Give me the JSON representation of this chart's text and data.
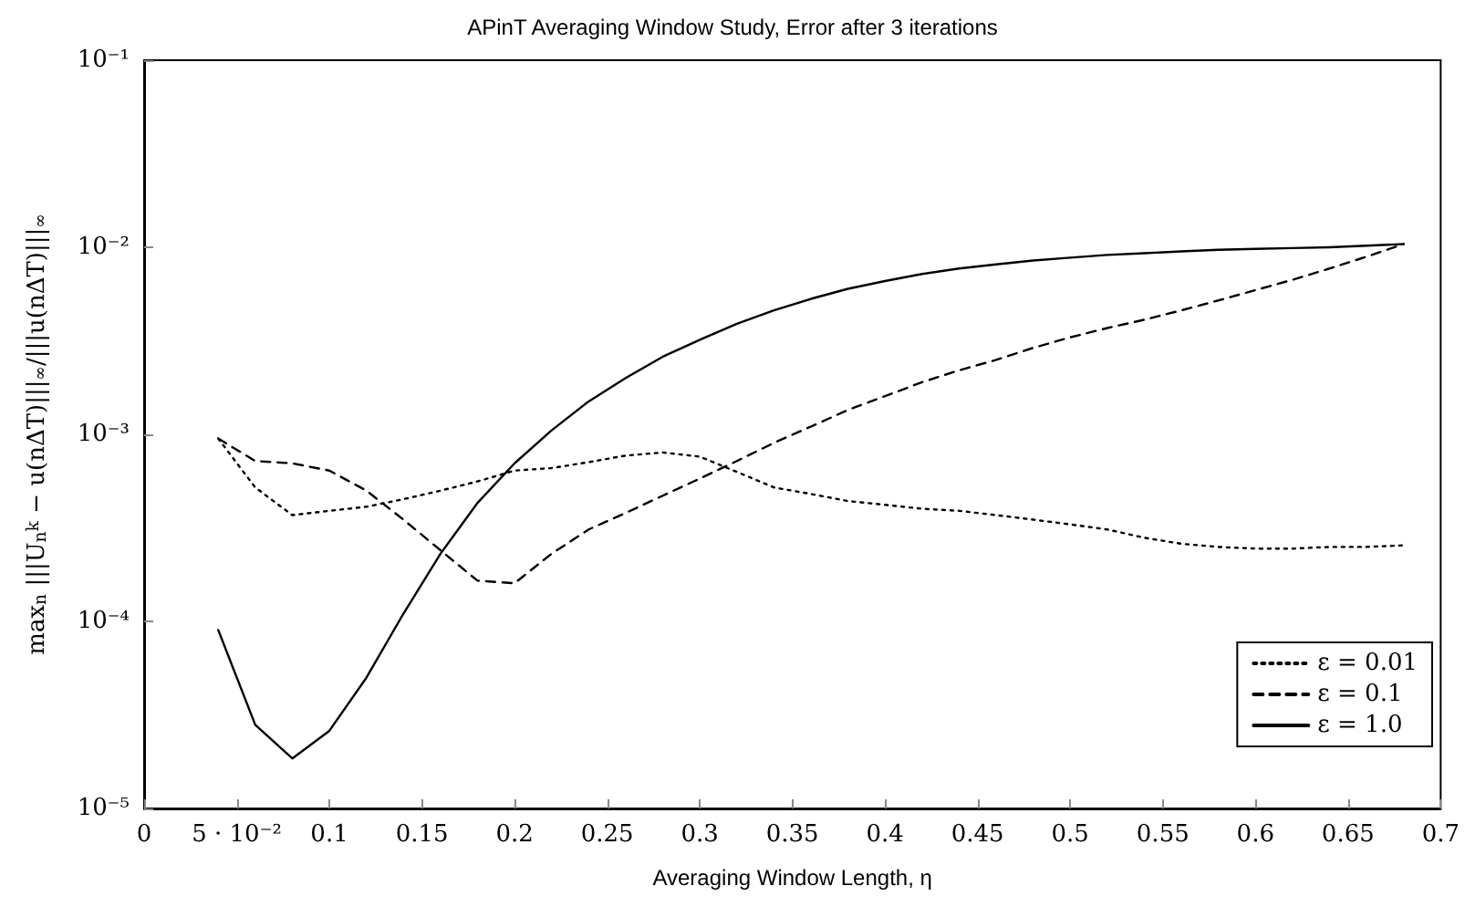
{
  "chart_data": {
    "type": "line",
    "title": "APinT Averaging Window Study, Error after 3 iterations",
    "xlabel": "Averaging Window Length, η",
    "ylabel": "max$_{n}$ |||U$_{n}$$^{k}$ − u(nΔT)|||$_{∞}$/|||u(nΔT)|||$_{∞}$",
    "x": [
      0.04,
      0.06,
      0.08,
      0.1,
      0.12,
      0.14,
      0.16,
      0.18,
      0.2,
      0.22,
      0.24,
      0.26,
      0.28,
      0.3,
      0.32,
      0.34,
      0.36,
      0.38,
      0.4,
      0.42,
      0.44,
      0.46,
      0.48,
      0.5,
      0.52,
      0.54,
      0.56,
      0.58,
      0.6,
      0.62,
      0.64,
      0.66,
      0.68
    ],
    "series": [
      {
        "name": "ε = 0.01",
        "color": "#000000",
        "line_style": "dotted",
        "values": [
          0.00095,
          0.00052,
          0.00037,
          0.00039,
          0.00041,
          0.00045,
          0.0005,
          0.00056,
          0.00064,
          0.00066,
          0.00071,
          0.00077,
          0.0008,
          0.00076,
          0.00063,
          0.00052,
          0.00048,
          0.00044,
          0.00042,
          0.0004,
          0.00039,
          0.00037,
          0.00035,
          0.00033,
          0.00031,
          0.00028,
          0.00026,
          0.00025,
          0.000245,
          0.000245,
          0.00025,
          0.00025,
          0.000255
        ]
      },
      {
        "name": "ε = 0.1",
        "color": "#000000",
        "line_style": "dashed",
        "values": [
          0.00095,
          0.00072,
          0.0007,
          0.00064,
          0.0005,
          0.00035,
          0.00024,
          0.000165,
          0.00016,
          0.00023,
          0.00031,
          0.00038,
          0.00047,
          0.00058,
          0.00072,
          0.0009,
          0.0011,
          0.00135,
          0.0016,
          0.0019,
          0.0022,
          0.0025,
          0.0029,
          0.0033,
          0.0037,
          0.0041,
          0.0046,
          0.0052,
          0.0059,
          0.0067,
          0.0077,
          0.0089,
          0.0104
        ]
      },
      {
        "name": "ε = 1.0",
        "color": "#000000",
        "line_style": "solid",
        "values": [
          9e-05,
          2.8e-05,
          1.85e-05,
          2.6e-05,
          5e-05,
          0.00011,
          0.00023,
          0.00043,
          0.0007,
          0.00105,
          0.0015,
          0.002,
          0.0026,
          0.0032,
          0.0039,
          0.0046,
          0.0053,
          0.006,
          0.0066,
          0.0072,
          0.0077,
          0.0081,
          0.0085,
          0.0088,
          0.0091,
          0.0093,
          0.0095,
          0.0097,
          0.0098,
          0.0099,
          0.01,
          0.0102,
          0.0104
        ]
      }
    ],
    "xlim": [
      0,
      0.7
    ],
    "xticks": [
      0,
      {
        "value": 0.05,
        "label": "5 · 10⁻²"
      },
      0.1,
      0.15,
      0.2,
      0.25,
      0.3,
      0.35,
      0.4,
      0.45,
      0.5,
      0.55,
      0.6,
      0.65,
      0.7
    ],
    "ylim": [
      1e-05,
      0.1
    ],
    "yticks": [
      {
        "value": 1e-05,
        "label": "10⁻⁵"
      },
      {
        "value": 0.0001,
        "label": "10⁻⁴"
      },
      {
        "value": 0.001,
        "label": "10⁻³"
      },
      {
        "value": 0.01,
        "label": "10⁻²"
      },
      {
        "value": 0.1,
        "label": "10⁻¹"
      }
    ],
    "log": "y",
    "grid": false,
    "legend": "bottom right",
    "marker": "none"
  }
}
